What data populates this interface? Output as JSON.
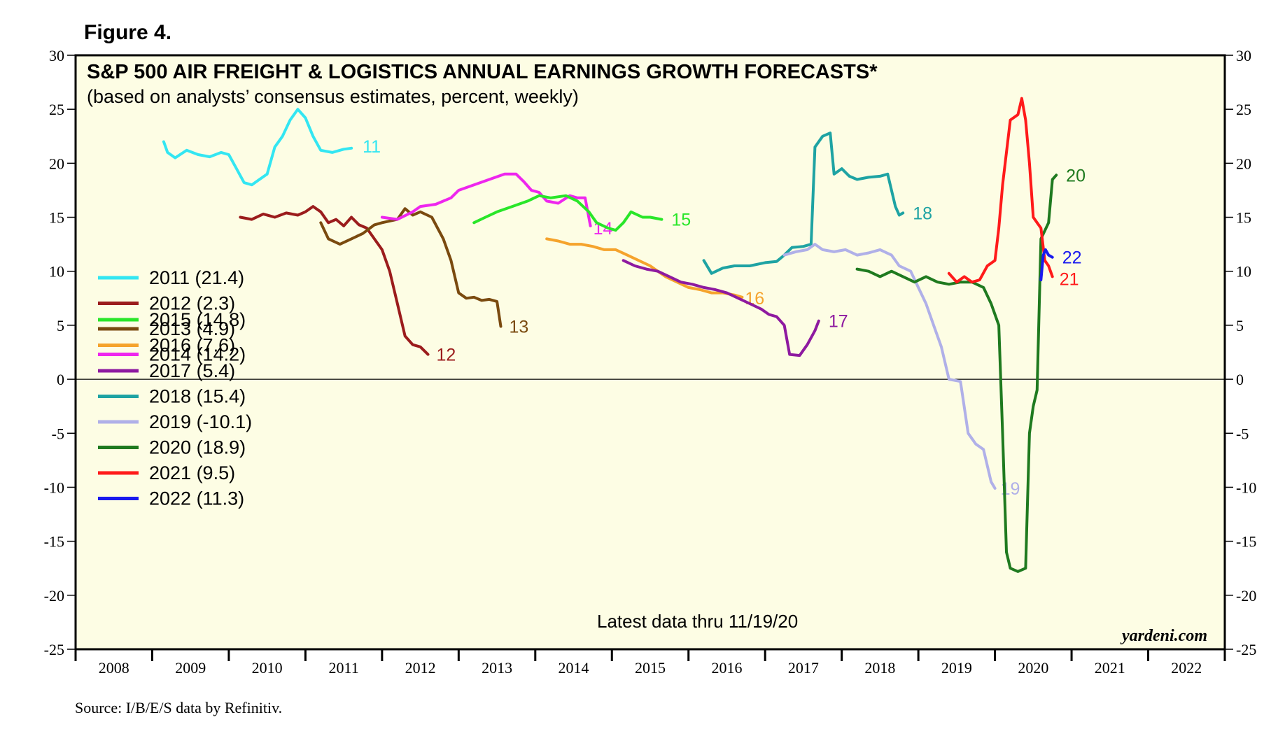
{
  "figure_label": "Figure 4.",
  "source": "Source: I/B/E/S data by Refinitiv.",
  "brand": "yardeni.com",
  "note": "Latest data thru 11/19/20",
  "chart_data": {
    "type": "line",
    "title": "S&P 500 AIR FREIGHT & LOGISTICS ANNUAL EARNINGS GROWTH FORECASTS*",
    "subtitle": "(based on analysts’ consensus estimates, percent, weekly)",
    "xlabel": "",
    "ylabel": "",
    "ylim": [
      -25,
      30
    ],
    "xlim": [
      2008,
      2023
    ],
    "yticks": [
      "30",
      "25",
      "20",
      "15",
      "10",
      "5",
      "0",
      "-5",
      "-10",
      "-15",
      "-20",
      "-25"
    ],
    "xticks": [
      "2008",
      "2009",
      "2010",
      "2011",
      "2012",
      "2013",
      "2014",
      "2015",
      "2016",
      "2017",
      "2018",
      "2019",
      "2020",
      "2021",
      "2022"
    ],
    "zero_line": true,
    "grid": false,
    "legend_position": "left",
    "series": [
      {
        "name": "2011",
        "legend": "2011 (21.4)",
        "end_label": "11",
        "color": "#33e6f2",
        "points": [
          [
            2009.15,
            22.0
          ],
          [
            2009.2,
            21.0
          ],
          [
            2009.3,
            20.5
          ],
          [
            2009.45,
            21.2
          ],
          [
            2009.6,
            20.8
          ],
          [
            2009.75,
            20.6
          ],
          [
            2009.9,
            21.0
          ],
          [
            2010.0,
            20.8
          ],
          [
            2010.1,
            19.5
          ],
          [
            2010.2,
            18.2
          ],
          [
            2010.3,
            18.0
          ],
          [
            2010.4,
            18.5
          ],
          [
            2010.5,
            19.0
          ],
          [
            2010.6,
            21.5
          ],
          [
            2010.7,
            22.5
          ],
          [
            2010.8,
            24.0
          ],
          [
            2010.9,
            25.0
          ],
          [
            2011.0,
            24.2
          ],
          [
            2011.1,
            22.5
          ],
          [
            2011.2,
            21.2
          ],
          [
            2011.35,
            21.0
          ],
          [
            2011.5,
            21.3
          ],
          [
            2011.6,
            21.4
          ]
        ]
      },
      {
        "name": "2012",
        "legend": "2012 (2.3)",
        "end_label": "12",
        "color": "#9b1c1c",
        "points": [
          [
            2010.15,
            15.0
          ],
          [
            2010.3,
            14.8
          ],
          [
            2010.45,
            15.3
          ],
          [
            2010.6,
            15.0
          ],
          [
            2010.75,
            15.4
          ],
          [
            2010.9,
            15.2
          ],
          [
            2011.0,
            15.5
          ],
          [
            2011.1,
            16.0
          ],
          [
            2011.2,
            15.5
          ],
          [
            2011.3,
            14.5
          ],
          [
            2011.4,
            14.8
          ],
          [
            2011.5,
            14.2
          ],
          [
            2011.6,
            15.0
          ],
          [
            2011.7,
            14.3
          ],
          [
            2011.8,
            14.0
          ],
          [
            2011.9,
            13.0
          ],
          [
            2012.0,
            12.0
          ],
          [
            2012.1,
            10.0
          ],
          [
            2012.2,
            7.0
          ],
          [
            2012.3,
            4.0
          ],
          [
            2012.4,
            3.2
          ],
          [
            2012.5,
            3.0
          ],
          [
            2012.6,
            2.3
          ]
        ]
      },
      {
        "name": "2013",
        "legend": "2013 (4.9)",
        "end_label": "13",
        "color": "#7a4a0f",
        "points": [
          [
            2011.2,
            14.5
          ],
          [
            2011.3,
            13.0
          ],
          [
            2011.45,
            12.5
          ],
          [
            2011.6,
            13.0
          ],
          [
            2011.75,
            13.5
          ],
          [
            2011.9,
            14.3
          ],
          [
            2012.0,
            14.5
          ],
          [
            2012.2,
            14.8
          ],
          [
            2012.3,
            15.8
          ],
          [
            2012.4,
            15.2
          ],
          [
            2012.5,
            15.5
          ],
          [
            2012.65,
            15.0
          ],
          [
            2012.8,
            13.0
          ],
          [
            2012.9,
            11.0
          ],
          [
            2013.0,
            8.0
          ],
          [
            2013.1,
            7.5
          ],
          [
            2013.2,
            7.6
          ],
          [
            2013.3,
            7.3
          ],
          [
            2013.4,
            7.4
          ],
          [
            2013.5,
            7.2
          ],
          [
            2013.55,
            4.9
          ]
        ]
      },
      {
        "name": "2014",
        "legend": "2014 (14.2)",
        "end_label": "14",
        "color": "#ee26ee",
        "points": [
          [
            2012.0,
            15.0
          ],
          [
            2012.2,
            14.8
          ],
          [
            2012.4,
            15.5
          ],
          [
            2012.5,
            16.0
          ],
          [
            2012.7,
            16.2
          ],
          [
            2012.9,
            16.8
          ],
          [
            2013.0,
            17.5
          ],
          [
            2013.2,
            18.0
          ],
          [
            2013.4,
            18.5
          ],
          [
            2013.6,
            19.0
          ],
          [
            2013.75,
            19.0
          ],
          [
            2013.85,
            18.3
          ],
          [
            2013.95,
            17.5
          ],
          [
            2014.05,
            17.3
          ],
          [
            2014.15,
            16.5
          ],
          [
            2014.3,
            16.3
          ],
          [
            2014.45,
            17.0
          ],
          [
            2014.55,
            16.8
          ],
          [
            2014.65,
            16.8
          ],
          [
            2014.72,
            14.2
          ]
        ]
      },
      {
        "name": "2015",
        "legend": "2015 (14.8)",
        "end_label": "15",
        "color": "#29e629",
        "points": [
          [
            2013.2,
            14.5
          ],
          [
            2013.35,
            15.0
          ],
          [
            2013.5,
            15.5
          ],
          [
            2013.7,
            16.0
          ],
          [
            2013.9,
            16.5
          ],
          [
            2014.05,
            17.0
          ],
          [
            2014.2,
            16.8
          ],
          [
            2014.4,
            17.0
          ],
          [
            2014.55,
            16.5
          ],
          [
            2014.7,
            15.5
          ],
          [
            2014.8,
            14.5
          ],
          [
            2014.95,
            14.0
          ],
          [
            2015.05,
            13.8
          ],
          [
            2015.15,
            14.5
          ],
          [
            2015.25,
            15.5
          ],
          [
            2015.4,
            15.0
          ],
          [
            2015.5,
            15.0
          ],
          [
            2015.65,
            14.8
          ]
        ]
      },
      {
        "name": "2016",
        "legend": "2016 (7.6)",
        "end_label": "16",
        "color": "#f5a32c",
        "points": [
          [
            2014.15,
            13.0
          ],
          [
            2014.3,
            12.8
          ],
          [
            2014.45,
            12.5
          ],
          [
            2014.6,
            12.5
          ],
          [
            2014.75,
            12.3
          ],
          [
            2014.9,
            12.0
          ],
          [
            2015.05,
            12.0
          ],
          [
            2015.2,
            11.5
          ],
          [
            2015.35,
            11.0
          ],
          [
            2015.5,
            10.5
          ],
          [
            2015.6,
            10.0
          ],
          [
            2015.7,
            9.5
          ],
          [
            2015.85,
            9.0
          ],
          [
            2016.0,
            8.5
          ],
          [
            2016.15,
            8.3
          ],
          [
            2016.3,
            8.0
          ],
          [
            2016.45,
            8.0
          ],
          [
            2016.6,
            7.8
          ],
          [
            2016.7,
            7.6
          ]
        ]
      },
      {
        "name": "2017",
        "legend": "2017 (5.4)",
        "end_label": "17",
        "color": "#8e1aa0",
        "points": [
          [
            2015.15,
            11.0
          ],
          [
            2015.3,
            10.5
          ],
          [
            2015.45,
            10.2
          ],
          [
            2015.6,
            10.0
          ],
          [
            2015.75,
            9.5
          ],
          [
            2015.9,
            9.0
          ],
          [
            2016.05,
            8.8
          ],
          [
            2016.2,
            8.5
          ],
          [
            2016.35,
            8.3
          ],
          [
            2016.5,
            8.0
          ],
          [
            2016.65,
            7.5
          ],
          [
            2016.8,
            7.0
          ],
          [
            2016.95,
            6.5
          ],
          [
            2017.05,
            6.0
          ],
          [
            2017.15,
            5.8
          ],
          [
            2017.25,
            5.0
          ],
          [
            2017.32,
            2.3
          ],
          [
            2017.45,
            2.2
          ],
          [
            2017.55,
            3.2
          ],
          [
            2017.65,
            4.5
          ],
          [
            2017.7,
            5.4
          ]
        ]
      },
      {
        "name": "2018",
        "legend": "2018 (15.4)",
        "end_label": "18",
        "color": "#1ea3a3",
        "points": [
          [
            2016.2,
            11.0
          ],
          [
            2016.3,
            9.8
          ],
          [
            2016.45,
            10.3
          ],
          [
            2016.6,
            10.5
          ],
          [
            2016.8,
            10.5
          ],
          [
            2017.0,
            10.8
          ],
          [
            2017.15,
            10.9
          ],
          [
            2017.25,
            11.5
          ],
          [
            2017.35,
            12.2
          ],
          [
            2017.5,
            12.3
          ],
          [
            2017.6,
            12.5
          ],
          [
            2017.65,
            21.5
          ],
          [
            2017.75,
            22.5
          ],
          [
            2017.85,
            22.8
          ],
          [
            2017.9,
            19.0
          ],
          [
            2018.0,
            19.5
          ],
          [
            2018.1,
            18.8
          ],
          [
            2018.2,
            18.5
          ],
          [
            2018.35,
            18.7
          ],
          [
            2018.5,
            18.8
          ],
          [
            2018.6,
            19.0
          ],
          [
            2018.7,
            16.0
          ],
          [
            2018.75,
            15.2
          ],
          [
            2018.8,
            15.4
          ]
        ]
      },
      {
        "name": "2019",
        "legend": "2019 (-10.1)",
        "end_label": "19",
        "color": "#b0b0e8",
        "points": [
          [
            2017.25,
            11.5
          ],
          [
            2017.4,
            11.8
          ],
          [
            2017.55,
            12.0
          ],
          [
            2017.65,
            12.5
          ],
          [
            2017.75,
            12.0
          ],
          [
            2017.9,
            11.8
          ],
          [
            2018.05,
            12.0
          ],
          [
            2018.2,
            11.5
          ],
          [
            2018.35,
            11.7
          ],
          [
            2018.5,
            12.0
          ],
          [
            2018.65,
            11.5
          ],
          [
            2018.75,
            10.5
          ],
          [
            2018.9,
            10.0
          ],
          [
            2019.0,
            8.5
          ],
          [
            2019.1,
            7.0
          ],
          [
            2019.2,
            5.0
          ],
          [
            2019.3,
            3.0
          ],
          [
            2019.4,
            0.0
          ],
          [
            2019.55,
            -0.2
          ],
          [
            2019.65,
            -5.0
          ],
          [
            2019.75,
            -6.0
          ],
          [
            2019.85,
            -6.5
          ],
          [
            2019.95,
            -9.5
          ],
          [
            2020.0,
            -10.1
          ]
        ]
      },
      {
        "name": "2020",
        "legend": "2020 (18.9)",
        "end_label": "20",
        "color": "#1f7a1f",
        "points": [
          [
            2018.2,
            10.2
          ],
          [
            2018.35,
            10.0
          ],
          [
            2018.5,
            9.5
          ],
          [
            2018.65,
            10.0
          ],
          [
            2018.8,
            9.5
          ],
          [
            2018.95,
            9.0
          ],
          [
            2019.1,
            9.5
          ],
          [
            2019.25,
            9.0
          ],
          [
            2019.4,
            8.8
          ],
          [
            2019.55,
            9.0
          ],
          [
            2019.7,
            9.0
          ],
          [
            2019.85,
            8.5
          ],
          [
            2019.95,
            7.0
          ],
          [
            2020.05,
            5.0
          ],
          [
            2020.1,
            -5.0
          ],
          [
            2020.15,
            -16.0
          ],
          [
            2020.2,
            -17.5
          ],
          [
            2020.3,
            -17.8
          ],
          [
            2020.4,
            -17.5
          ],
          [
            2020.45,
            -5.0
          ],
          [
            2020.5,
            -2.5
          ],
          [
            2020.55,
            -1.0
          ],
          [
            2020.6,
            13.0
          ],
          [
            2020.7,
            14.5
          ],
          [
            2020.75,
            18.5
          ],
          [
            2020.8,
            18.9
          ]
        ]
      },
      {
        "name": "2021",
        "legend": "2021 (9.5)",
        "end_label": "21",
        "color": "#ff1a1a",
        "points": [
          [
            2019.4,
            9.8
          ],
          [
            2019.5,
            9.0
          ],
          [
            2019.6,
            9.5
          ],
          [
            2019.7,
            9.0
          ],
          [
            2019.8,
            9.2
          ],
          [
            2019.9,
            10.5
          ],
          [
            2020.0,
            11.0
          ],
          [
            2020.05,
            14.0
          ],
          [
            2020.1,
            18.0
          ],
          [
            2020.2,
            24.0
          ],
          [
            2020.3,
            24.5
          ],
          [
            2020.35,
            26.0
          ],
          [
            2020.4,
            24.0
          ],
          [
            2020.45,
            20.0
          ],
          [
            2020.5,
            15.0
          ],
          [
            2020.55,
            14.5
          ],
          [
            2020.6,
            14.0
          ],
          [
            2020.65,
            11.0
          ],
          [
            2020.7,
            10.5
          ],
          [
            2020.75,
            9.5
          ]
        ]
      },
      {
        "name": "2022",
        "legend": "2022 (11.3)",
        "end_label": "22",
        "color": "#1a1aee",
        "points": [
          [
            2020.6,
            9.2
          ],
          [
            2020.63,
            11.5
          ],
          [
            2020.66,
            12.0
          ],
          [
            2020.7,
            11.5
          ],
          [
            2020.75,
            11.3
          ]
        ]
      }
    ]
  }
}
